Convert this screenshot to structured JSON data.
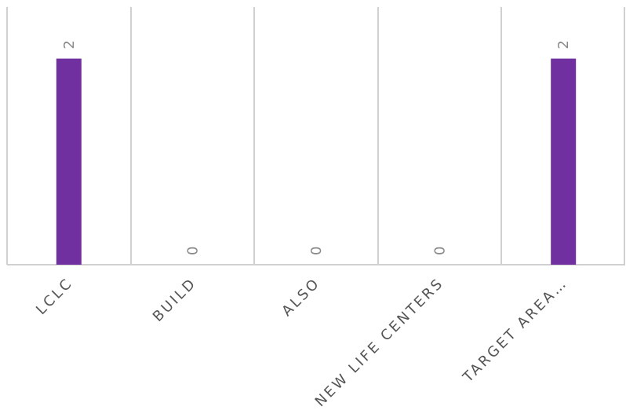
{
  "chart_data": {
    "type": "bar",
    "categories": [
      "LCLC",
      "BUILD",
      "ALSO",
      "NEW LIFE CENTERS",
      "TARGET AREA…"
    ],
    "series": [
      {
        "values": [
          2,
          0,
          0,
          0,
          2
        ],
        "color": "#7030a0"
      }
    ],
    "data_labels": [
      "2",
      "0",
      "0",
      "0",
      "2"
    ],
    "ylim": [
      0,
      2.5
    ],
    "grid": "vertical category separators",
    "legend": "none",
    "title": "",
    "xlabel": "",
    "ylabel": ""
  }
}
